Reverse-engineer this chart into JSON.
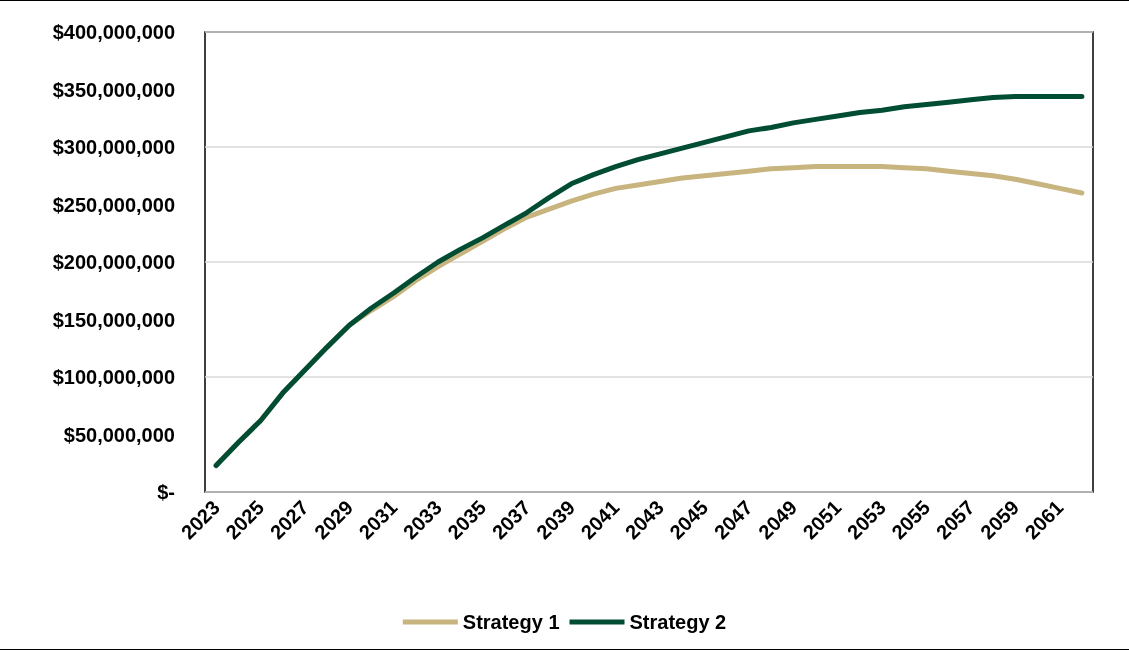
{
  "chart_data": {
    "type": "line",
    "categories": [
      "2023",
      null,
      "2025",
      null,
      "2027",
      null,
      "2029",
      null,
      "2031",
      null,
      "2033",
      null,
      "2035",
      null,
      "2037",
      null,
      "2039",
      null,
      "2041",
      null,
      "2043",
      null,
      "2045",
      null,
      "2047",
      null,
      "2049",
      null,
      "2051",
      null,
      "2053",
      null,
      "2055",
      null,
      "2057",
      null,
      "2059",
      null,
      "2061",
      null
    ],
    "series": [
      {
        "name": "Strategy 1",
        "color": "#c8b47e",
        "values": [
          23000000,
          43000000,
          62000000,
          86000000,
          106000000,
          126000000,
          145000000,
          158000000,
          170000000,
          184000000,
          196000000,
          207000000,
          218000000,
          229000000,
          239000000,
          246000000,
          253000000,
          259000000,
          264000000,
          267000000,
          270000000,
          273000000,
          275000000,
          277000000,
          279000000,
          281000000,
          282000000,
          283000000,
          283000000,
          283000000,
          283000000,
          282000000,
          281000000,
          279000000,
          277000000,
          275000000,
          272000000,
          268000000,
          264000000,
          260000000
        ]
      },
      {
        "name": "Strategy 2",
        "color": "#004d34",
        "values": [
          23000000,
          43000000,
          62000000,
          86000000,
          106000000,
          126000000,
          145000000,
          160000000,
          173000000,
          187000000,
          200000000,
          211000000,
          221000000,
          232000000,
          243000000,
          256000000,
          268000000,
          276000000,
          283000000,
          289000000,
          294000000,
          299000000,
          304000000,
          309000000,
          314000000,
          317000000,
          321000000,
          324000000,
          327000000,
          330000000,
          332000000,
          335000000,
          337000000,
          339000000,
          341000000,
          343000000,
          344000000,
          344000000,
          344000000,
          344000000
        ]
      }
    ],
    "ylim": [
      0,
      400000000
    ],
    "yticks": [
      {
        "value": 0,
        "label": "$-"
      },
      {
        "value": 50000000,
        "label": "$50,000,000"
      },
      {
        "value": 100000000,
        "label": "$100,000,000"
      },
      {
        "value": 150000000,
        "label": "$150,000,000"
      },
      {
        "value": 200000000,
        "label": "$200,000,000"
      },
      {
        "value": 250000000,
        "label": "$250,000,000"
      },
      {
        "value": 300000000,
        "label": "$300,000,000"
      },
      {
        "value": 350000000,
        "label": "$350,000,000"
      },
      {
        "value": 400000000,
        "label": "$400,000,000"
      }
    ],
    "grid": "y",
    "legend": "bottom",
    "marker": "none",
    "line_style": "solid"
  }
}
